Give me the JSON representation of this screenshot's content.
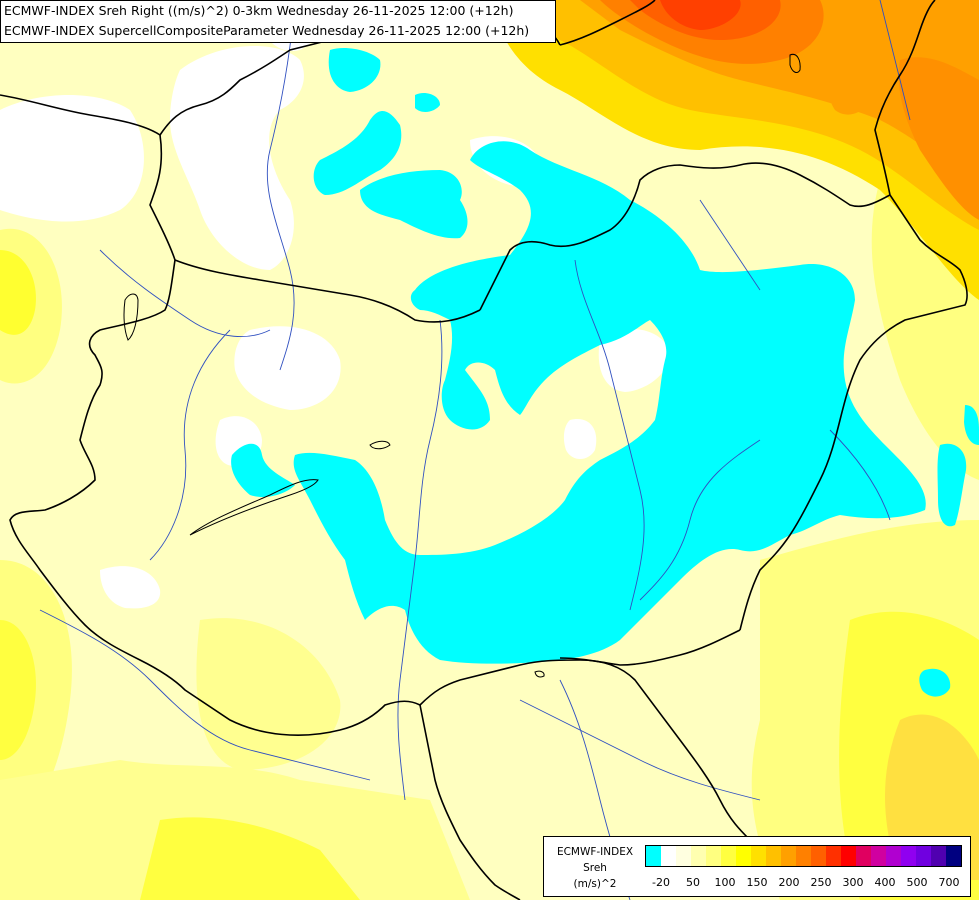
{
  "title": {
    "line1": "ECMWF-INDEX Sreh Right ((m/s)^2) 0-3km Wednesday 26-11-2025 12:00 (+12h)",
    "line2": "ECMWF-INDEX SupercellCompositeParameter Wednesday 26-11-2025 12:00 (+12h)"
  },
  "legend": {
    "line1": "ECMWF-INDEX",
    "line2": "Sreh",
    "line3": "(m/s)^2",
    "swatch_colors": [
      "#00ffff",
      "#ffffff",
      "#ffffe0",
      "#ffffb0",
      "#ffff80",
      "#ffff40",
      "#ffff00",
      "#ffe000",
      "#ffc000",
      "#ffa000",
      "#ff8000",
      "#ff6000",
      "#ff3000",
      "#ff0000",
      "#e00060",
      "#d000a0",
      "#b000d0",
      "#9000f0",
      "#7000e0",
      "#5000b0",
      "#000080"
    ],
    "ticks": [
      "-20",
      "50",
      "100",
      "150",
      "200",
      "250",
      "300",
      "400",
      "500",
      "700"
    ]
  },
  "colors": {
    "background": "#ffffc0",
    "pale_yellow": "#ffffa0",
    "yellow": "#ffff50",
    "gold": "#ffe000",
    "orange": "#ffb000",
    "dark_orange": "#ff8000",
    "red_orange": "#ff5000",
    "cyan": "#00ffff",
    "white": "#ffffff",
    "border": "#000000",
    "river": "#3050c0"
  }
}
